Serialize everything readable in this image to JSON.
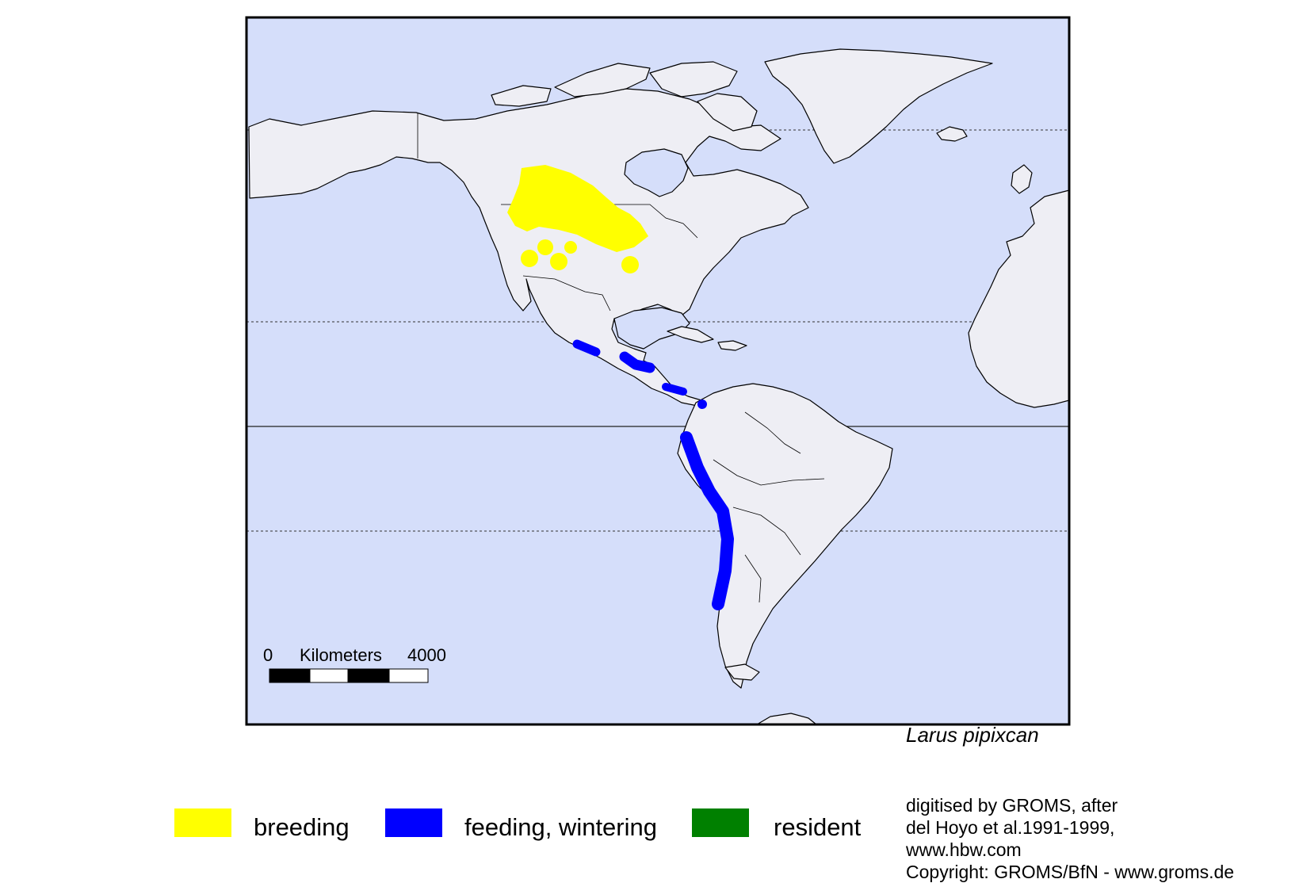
{
  "map": {
    "species": "Larus pipixcan",
    "scale_bar": {
      "zero_label": "0",
      "unit_label": "Kilometers",
      "max_label": "4000"
    },
    "colors": {
      "ocean": "#d5defa",
      "land": "#eeeef4",
      "coast": "#000000",
      "breeding": "#ffff00",
      "feeding_wintering": "#0000ff",
      "resident": "#008000"
    }
  },
  "legend": [
    {
      "label": "breeding",
      "color": "#ffff00"
    },
    {
      "label": "feeding, wintering",
      "color": "#0000ff"
    },
    {
      "label": "resident",
      "color": "#008000"
    }
  ],
  "credit": {
    "lines": [
      "digitised by GROMS, after",
      "del Hoyo et al.1991-1999,",
      "www.hbw.com",
      "Copyright: GROMS/BfN - www.groms.de"
    ]
  }
}
